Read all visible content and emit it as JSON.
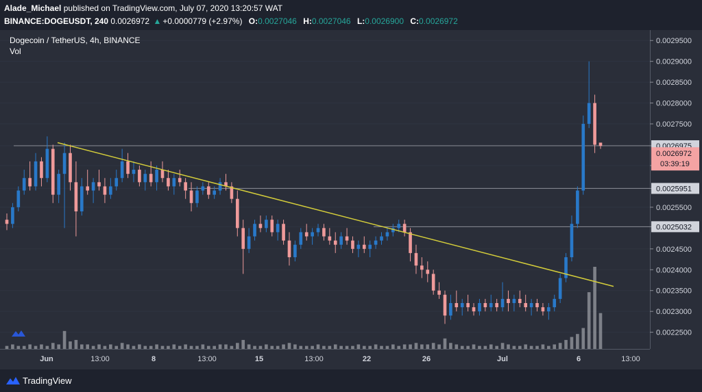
{
  "header": {
    "author": "Alade_Michael",
    "published_text": "published on TradingView.com, July 07, 2020 13:20:57 WAT",
    "symbol": "BINANCE:DOGEUSDT, 240",
    "price": "0.0026972",
    "change": "+0.0000779 (+2.97%)",
    "o_label": "O:",
    "o_value": "0.0027046",
    "h_label": "H:",
    "h_value": "0.0027046",
    "l_label": "L:",
    "l_value": "0.0026900",
    "c_label": "C:",
    "c_value": "0.0026972"
  },
  "legend": {
    "title": "Dogecoin / TetherUS, 4h, BINANCE",
    "vol": "Vol"
  },
  "footer": {
    "brand": "TradingView"
  },
  "colors": {
    "up": "#2979c9",
    "down": "#ef9a9a",
    "trendline": "#d4cd3a",
    "background": "#2a2e39"
  },
  "chart_data": {
    "type": "candlestick",
    "title": "Dogecoin / TetherUS, 4h, BINANCE",
    "ylim": [
      0.00221,
      0.002975
    ],
    "y_ticks": [
      "0.0029500",
      "0.0029000",
      "0.0028500",
      "0.0028000",
      "0.0027500",
      "0.0026975",
      "0.0026500",
      "0.0025951",
      "0.0025500",
      "0.0025032",
      "0.0024500",
      "0.0024000",
      "0.0023500",
      "0.0023000",
      "0.0022500"
    ],
    "x_ticks": [
      "Jun",
      "13:00",
      "8",
      "13:00",
      "15",
      "13:00",
      "22",
      "26",
      "Jul",
      "6",
      "13:00"
    ],
    "horizontal_levels": [
      0.0026975,
      0.0025951,
      0.0025032
    ],
    "last_price_label": "0.0026972",
    "countdown_label": "03:39:19",
    "trendline": {
      "start": [
        "Jun",
        0.002705
      ],
      "end": [
        "13:00 (Jul 6)",
        0.00236
      ]
    },
    "series": [
      {
        "values": [
          [
            0.00252,
            0.002535,
            0.002495,
            0.00251
          ],
          [
            0.00251,
            0.00256,
            0.0025,
            0.00255
          ],
          [
            0.00255,
            0.0026,
            0.00254,
            0.00259
          ],
          [
            0.00259,
            0.00264,
            0.00258,
            0.00262
          ],
          [
            0.00262,
            0.00266,
            0.00259,
            0.0026
          ],
          [
            0.0026,
            0.00268,
            0.00259,
            0.00266
          ],
          [
            0.00266,
            0.00267,
            0.0026,
            0.00262
          ],
          [
            0.00262,
            0.00272,
            0.00261,
            0.00269
          ],
          [
            0.00269,
            0.0027,
            0.00256,
            0.00258
          ],
          [
            0.00258,
            0.00264,
            0.00256,
            0.00263
          ],
          [
            0.00263,
            0.002705,
            0.0025,
            0.00268
          ],
          [
            0.00268,
            0.0027,
            0.00259,
            0.00261
          ],
          [
            0.00261,
            0.00266,
            0.00248,
            0.00254
          ],
          [
            0.00254,
            0.00262,
            0.00253,
            0.0026
          ],
          [
            0.0026,
            0.00264,
            0.00258,
            0.00259
          ],
          [
            0.00259,
            0.00262,
            0.00256,
            0.00261
          ],
          [
            0.00261,
            0.00264,
            0.00259,
            0.0026
          ],
          [
            0.0026,
            0.00262,
            0.00256,
            0.00258
          ],
          [
            0.00258,
            0.00262,
            0.00257,
            0.0026
          ],
          [
            0.0026,
            0.00264,
            0.00259,
            0.00262
          ],
          [
            0.00262,
            0.00269,
            0.00261,
            0.00266
          ],
          [
            0.00266,
            0.00268,
            0.00262,
            0.00263
          ],
          [
            0.00263,
            0.00266,
            0.00261,
            0.00264
          ],
          [
            0.00264,
            0.00265,
            0.0026,
            0.00261
          ],
          [
            0.00261,
            0.00264,
            0.00259,
            0.00263
          ],
          [
            0.00263,
            0.00266,
            0.0026,
            0.00261
          ],
          [
            0.00261,
            0.00265,
            0.00259,
            0.00264
          ],
          [
            0.00264,
            0.00266,
            0.00261,
            0.00262
          ],
          [
            0.00262,
            0.00264,
            0.00259,
            0.0026
          ],
          [
            0.0026,
            0.00263,
            0.00258,
            0.00262
          ],
          [
            0.00262,
            0.00264,
            0.0026,
            0.00261
          ],
          [
            0.00261,
            0.00262,
            0.00257,
            0.00259
          ],
          [
            0.00259,
            0.00261,
            0.00254,
            0.00256
          ],
          [
            0.00256,
            0.0026,
            0.00255,
            0.00259
          ],
          [
            0.00259,
            0.00261,
            0.00258,
            0.0026
          ],
          [
            0.0026,
            0.00261,
            0.00257,
            0.00258
          ],
          [
            0.00258,
            0.0026,
            0.00257,
            0.00259
          ],
          [
            0.00259,
            0.00262,
            0.00258,
            0.00261
          ],
          [
            0.00261,
            0.00263,
            0.00259,
            0.0026
          ],
          [
            0.0026,
            0.00261,
            0.00256,
            0.00257
          ],
          [
            0.00257,
            0.00259,
            0.00248,
            0.0025
          ],
          [
            0.0025,
            0.00252,
            0.00239,
            0.00245
          ],
          [
            0.00245,
            0.0025,
            0.00244,
            0.00248
          ],
          [
            0.00248,
            0.00252,
            0.00247,
            0.00251
          ],
          [
            0.00251,
            0.00253,
            0.00249,
            0.0025
          ],
          [
            0.0025,
            0.00253,
            0.00249,
            0.00252
          ],
          [
            0.00252,
            0.00253,
            0.00248,
            0.00249
          ],
          [
            0.00249,
            0.00252,
            0.00247,
            0.00251
          ],
          [
            0.00251,
            0.00252,
            0.00246,
            0.00247
          ],
          [
            0.00247,
            0.00249,
            0.00241,
            0.00243
          ],
          [
            0.00243,
            0.00247,
            0.00242,
            0.00246
          ],
          [
            0.00246,
            0.0025,
            0.00245,
            0.00249
          ],
          [
            0.00249,
            0.00251,
            0.00247,
            0.00248
          ],
          [
            0.00248,
            0.0025,
            0.00246,
            0.00249
          ],
          [
            0.00249,
            0.00251,
            0.00248,
            0.0025
          ],
          [
            0.0025,
            0.00251,
            0.00247,
            0.00248
          ],
          [
            0.00248,
            0.0025,
            0.00246,
            0.00247
          ],
          [
            0.00247,
            0.00249,
            0.00244,
            0.00246
          ],
          [
            0.00246,
            0.00249,
            0.00245,
            0.00248
          ],
          [
            0.00248,
            0.0025,
            0.00246,
            0.00247
          ],
          [
            0.00247,
            0.00248,
            0.00244,
            0.00245
          ],
          [
            0.00245,
            0.00247,
            0.00243,
            0.00246
          ],
          [
            0.00246,
            0.00248,
            0.00244,
            0.00245
          ],
          [
            0.00245,
            0.00247,
            0.00243,
            0.00246
          ],
          [
            0.00246,
            0.00248,
            0.00245,
            0.00247
          ],
          [
            0.00247,
            0.00249,
            0.00246,
            0.00248
          ],
          [
            0.00248,
            0.0025,
            0.00247,
            0.00249
          ],
          [
            0.00249,
            0.00251,
            0.00248,
            0.0025
          ],
          [
            0.0025,
            0.00252,
            0.00249,
            0.00251
          ],
          [
            0.00251,
            0.00252,
            0.00248,
            0.00249
          ],
          [
            0.00249,
            0.0025,
            0.00242,
            0.00244
          ],
          [
            0.00244,
            0.00246,
            0.00239,
            0.00241
          ],
          [
            0.00241,
            0.00243,
            0.00238,
            0.0024
          ],
          [
            0.0024,
            0.00242,
            0.00237,
            0.00239
          ],
          [
            0.00239,
            0.0024,
            0.00234,
            0.00235
          ],
          [
            0.00235,
            0.00237,
            0.00233,
            0.00234
          ],
          [
            0.00234,
            0.00235,
            0.00227,
            0.00229
          ],
          [
            0.00229,
            0.00234,
            0.00228,
            0.00232
          ],
          [
            0.00232,
            0.00235,
            0.0023,
            0.00231
          ],
          [
            0.00231,
            0.00233,
            0.00229,
            0.00232
          ],
          [
            0.00232,
            0.00234,
            0.0023,
            0.00231
          ],
          [
            0.00231,
            0.00232,
            0.00229,
            0.0023
          ],
          [
            0.0023,
            0.00233,
            0.00229,
            0.00232
          ],
          [
            0.00232,
            0.00233,
            0.0023,
            0.00231
          ],
          [
            0.00231,
            0.00234,
            0.0023,
            0.00232
          ],
          [
            0.00232,
            0.00233,
            0.0023,
            0.00231
          ],
          [
            0.00231,
            0.00237,
            0.0023,
            0.00233
          ],
          [
            0.00233,
            0.00235,
            0.0023,
            0.00232
          ],
          [
            0.00232,
            0.00234,
            0.0023,
            0.00233
          ],
          [
            0.00233,
            0.00235,
            0.00231,
            0.00232
          ],
          [
            0.00232,
            0.00234,
            0.0023,
            0.00231
          ],
          [
            0.00231,
            0.00233,
            0.00229,
            0.00232
          ],
          [
            0.00232,
            0.00233,
            0.0023,
            0.00231
          ],
          [
            0.00231,
            0.00232,
            0.00229,
            0.0023
          ],
          [
            0.0023,
            0.00232,
            0.00228,
            0.00231
          ],
          [
            0.00231,
            0.00234,
            0.0023,
            0.00233
          ],
          [
            0.00233,
            0.00239,
            0.00232,
            0.00238
          ],
          [
            0.00238,
            0.00244,
            0.00237,
            0.00243
          ],
          [
            0.00243,
            0.00253,
            0.00242,
            0.00251
          ],
          [
            0.00251,
            0.0026,
            0.0025,
            0.00259
          ],
          [
            0.00259,
            0.00277,
            0.00258,
            0.00275
          ],
          [
            0.00275,
            0.0029,
            0.00274,
            0.0028
          ],
          [
            0.0028,
            0.00282,
            0.00268,
            0.0027
          ],
          [
            0.002705,
            0.002705,
            0.00269,
            0.002697
          ]
        ]
      },
      {
        "name": "Vol",
        "values": [
          2,
          3,
          2,
          2,
          3,
          2,
          3,
          2,
          4,
          3,
          12,
          5,
          6,
          3,
          3,
          2,
          3,
          2,
          3,
          2,
          4,
          3,
          2,
          3,
          2,
          2,
          3,
          2,
          2,
          3,
          2,
          3,
          2,
          2,
          3,
          2,
          2,
          3,
          3,
          2,
          4,
          6,
          3,
          2,
          2,
          3,
          2,
          2,
          3,
          4,
          3,
          2,
          2,
          2,
          3,
          2,
          2,
          3,
          2,
          2,
          2,
          3,
          2,
          2,
          3,
          2,
          2,
          3,
          2,
          3,
          3,
          4,
          3,
          3,
          4,
          3,
          7,
          4,
          3,
          2,
          2,
          3,
          2,
          2,
          3,
          2,
          4,
          3,
          2,
          2,
          3,
          2,
          2,
          3,
          2,
          3,
          4,
          6,
          8,
          10,
          14,
          38,
          55,
          24
        ]
      }
    ]
  }
}
